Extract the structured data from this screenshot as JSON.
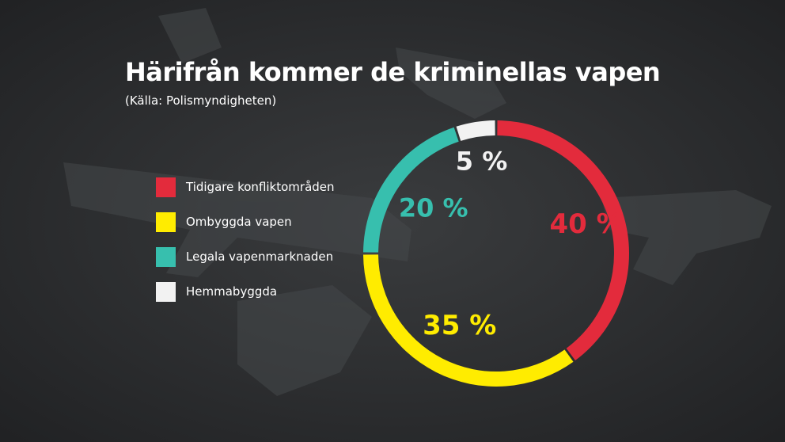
{
  "chart_data": {
    "type": "pie",
    "title": "Härifrån kommer de kriminellas vapen",
    "subtitle": "(Källa: Polismyndigheten)",
    "categories": [
      "Tidigare konfliktområden",
      "Ombyggda vapen",
      "Legala vapenmarknaden",
      "Hemmabyggda"
    ],
    "values": [
      40,
      35,
      20,
      5
    ],
    "data_labels": [
      "40 %",
      "35 %",
      "20 %",
      "5 %"
    ],
    "colors": [
      "#e32b3c",
      "#ffec00",
      "#37bfae",
      "#f2f2f2"
    ],
    "donut": true,
    "legend_position": "left"
  }
}
